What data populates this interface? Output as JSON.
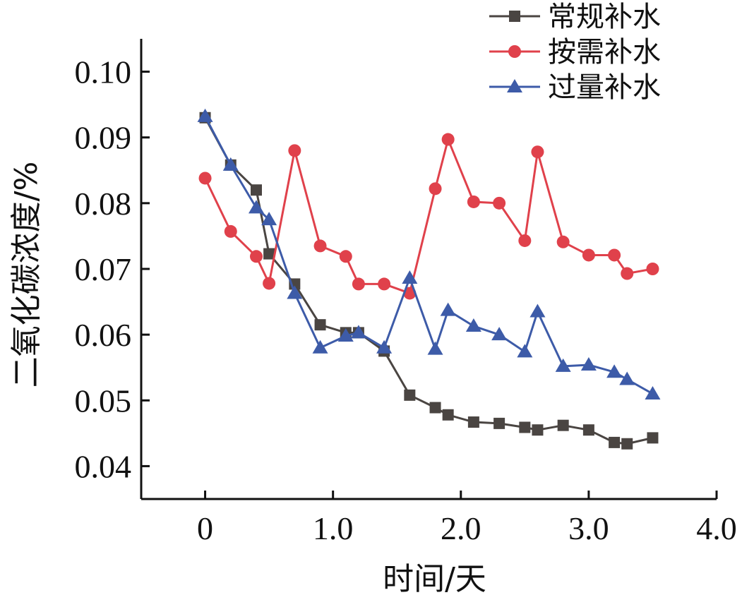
{
  "chart_data": {
    "type": "line",
    "xlabel": "时间/天",
    "ylabel": "二氧化碳浓度/%",
    "xlim": [
      -0.5,
      4.0
    ],
    "ylim": [
      0.035,
      0.105
    ],
    "x_ticks": [
      0,
      1.0,
      2.0,
      3.0,
      4.0
    ],
    "x_tick_labels": [
      "0",
      "1.0",
      "2.0",
      "3.0",
      "4.0"
    ],
    "y_ticks": [
      0.04,
      0.05,
      0.06,
      0.07,
      0.08,
      0.09,
      0.1
    ],
    "y_tick_labels": [
      "0.04",
      "0.05",
      "0.06",
      "0.07",
      "0.08",
      "0.09",
      "0.10"
    ],
    "grid": false,
    "legend_position": "top-right",
    "series": [
      {
        "name": "常规补水",
        "color": "#4a4542",
        "marker": "square",
        "x": [
          0,
          0.2,
          0.4,
          0.5,
          0.7,
          0.9,
          1.1,
          1.2,
          1.4,
          1.6,
          1.8,
          1.9,
          2.1,
          2.3,
          2.5,
          2.6,
          2.8,
          3.0,
          3.2,
          3.3,
          3.5
        ],
        "y": [
          0.093,
          0.0858,
          0.082,
          0.0723,
          0.0677,
          0.0615,
          0.0603,
          0.0603,
          0.0575,
          0.0508,
          0.0489,
          0.0478,
          0.0467,
          0.0465,
          0.0459,
          0.0455,
          0.0462,
          0.0455,
          0.0436,
          0.0434,
          0.0443
        ]
      },
      {
        "name": "按需补水",
        "color": "#e0414b",
        "marker": "circle",
        "x": [
          0,
          0.2,
          0.4,
          0.5,
          0.7,
          0.9,
          1.1,
          1.2,
          1.4,
          1.6,
          1.8,
          1.9,
          2.1,
          2.3,
          2.5,
          2.6,
          2.8,
          3.0,
          3.2,
          3.3,
          3.5
        ],
        "y": [
          0.0838,
          0.0757,
          0.0719,
          0.0678,
          0.088,
          0.0735,
          0.0719,
          0.0677,
          0.0677,
          0.0663,
          0.0822,
          0.0897,
          0.0802,
          0.08,
          0.0743,
          0.0878,
          0.0741,
          0.0721,
          0.0721,
          0.0693,
          0.07
        ]
      },
      {
        "name": "过量补水",
        "color": "#3d5ba8",
        "marker": "triangle",
        "x": [
          0,
          0.2,
          0.4,
          0.5,
          0.7,
          0.9,
          1.1,
          1.2,
          1.4,
          1.6,
          1.8,
          1.9,
          2.1,
          2.3,
          2.5,
          2.6,
          2.8,
          3.0,
          3.2,
          3.3,
          3.5
        ],
        "y": [
          0.0932,
          0.0858,
          0.0793,
          0.0775,
          0.0663,
          0.058,
          0.0598,
          0.0603,
          0.058,
          0.0686,
          0.0578,
          0.0637,
          0.0613,
          0.06,
          0.0574,
          0.0635,
          0.0552,
          0.0554,
          0.0543,
          0.0532,
          0.051
        ]
      }
    ]
  }
}
